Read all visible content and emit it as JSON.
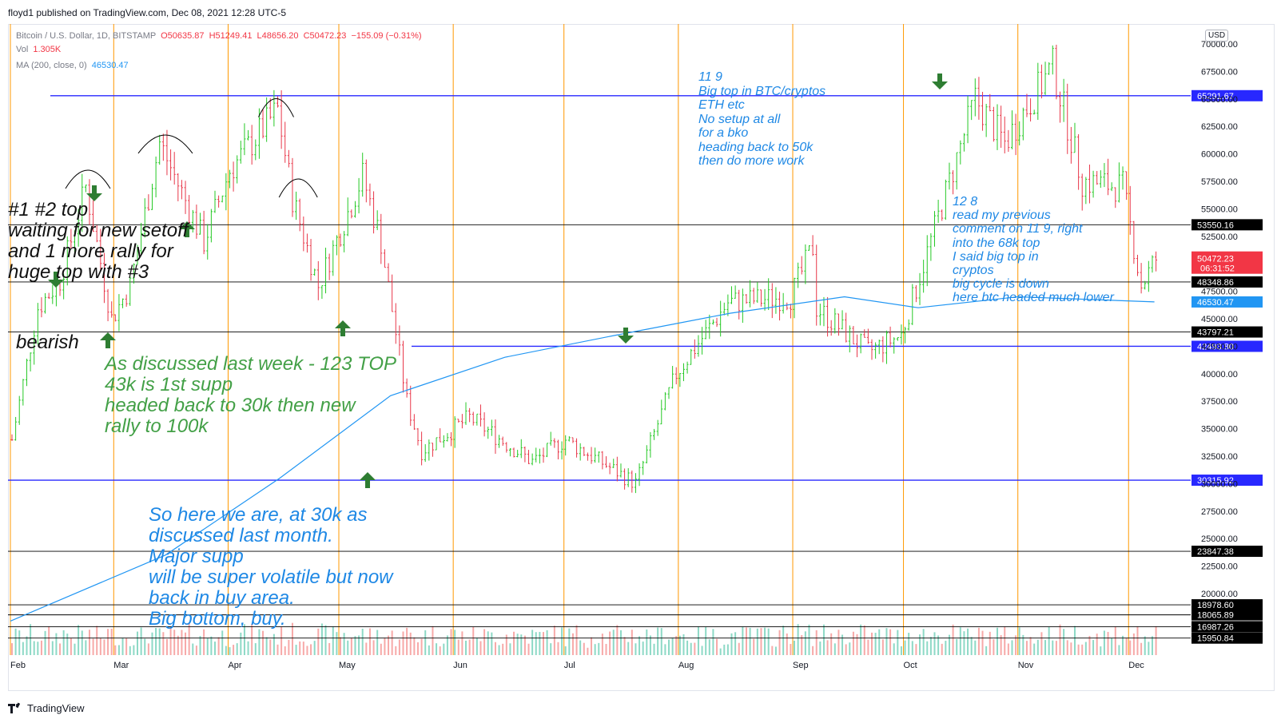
{
  "header": {
    "published": "floyd1 published on TradingView.com, Dec 08, 2021 12:28 UTC-5"
  },
  "legend": {
    "symbol": "Bitcoin / U.S. Dollar, 1D, BITSTAMP",
    "open": "O50635.87",
    "high": "H51249.41",
    "low": "L48656.20",
    "close": "C50472.23",
    "change": "−155.09 (−0.31%)",
    "vol_label": "Vol",
    "vol_value": "1.305K",
    "ma_label": "MA (200, close, 0)",
    "ma_value": "46530.47"
  },
  "currency": "USD",
  "footer": {
    "brand": "TradingView"
  },
  "colors": {
    "up": "#26c926",
    "down": "#e8384a",
    "vol_up": "#8dd9c6",
    "vol_down": "#f7a9a8",
    "ma": "#2196f3",
    "blue_level": "#2828ff",
    "black_level": "#000000",
    "vline": "#ff9800",
    "note_black": "#111111",
    "note_green": "#43a047",
    "note_blue": "#1e88e5",
    "arrow": "#2e7d32"
  },
  "chart_data": {
    "type": "candlestick",
    "ylim": [
      20000,
      72000
    ],
    "x_months": [
      "Feb",
      "Mar",
      "Apr",
      "May",
      "Jun",
      "Jul",
      "Aug",
      "Sep",
      "Oct",
      "Nov",
      "Dec"
    ],
    "y_ticks": [
      "70000.00",
      "67500.00",
      "65000.00",
      "62500.00",
      "60000.00",
      "57500.00",
      "55000.00",
      "52500.00",
      "50000.00",
      "47500.00",
      "45000.00",
      "42500.00",
      "40000.00",
      "37500.00",
      "35000.00",
      "32500.00",
      "30000.00",
      "27500.00",
      "25000.00",
      "22500.00",
      "20000.00"
    ],
    "y_tick_values": [
      70000,
      67500,
      65000,
      62500,
      60000,
      57500,
      55000,
      52500,
      50000,
      47500,
      45000,
      42500,
      40000,
      37500,
      35000,
      32500,
      30000,
      27500,
      25000,
      22500,
      20000
    ],
    "price_path": [
      [
        "2021-02-01",
        34000
      ],
      [
        "2021-02-08",
        46000
      ],
      [
        "2021-02-14",
        48500
      ],
      [
        "2021-02-21",
        57000
      ],
      [
        "2021-02-28",
        45000
      ],
      [
        "2021-03-05",
        48000
      ],
      [
        "2021-03-13",
        61000
      ],
      [
        "2021-03-25",
        52000
      ],
      [
        "2021-04-01",
        58500
      ],
      [
        "2021-04-14",
        64000
      ],
      [
        "2021-04-18",
        56000
      ],
      [
        "2021-04-25",
        48000
      ],
      [
        "2021-05-07",
        58000
      ],
      [
        "2021-05-12",
        52000
      ],
      [
        "2021-05-19",
        37500
      ],
      [
        "2021-05-23",
        33000
      ],
      [
        "2021-06-05",
        36000
      ],
      [
        "2021-06-22",
        32000
      ],
      [
        "2021-07-01",
        34000
      ],
      [
        "2021-07-20",
        30000
      ],
      [
        "2021-07-31",
        40000
      ],
      [
        "2021-08-14",
        46500
      ],
      [
        "2021-08-31",
        47000
      ],
      [
        "2021-09-06",
        51500
      ],
      [
        "2021-09-07",
        46000
      ],
      [
        "2021-09-21",
        42000
      ],
      [
        "2021-09-30",
        43500
      ],
      [
        "2021-10-20",
        65000
      ],
      [
        "2021-10-28",
        61000
      ],
      [
        "2021-11-10",
        68000
      ],
      [
        "2021-11-18",
        57500
      ],
      [
        "2021-11-29",
        57000
      ],
      [
        "2021-12-04",
        48000
      ],
      [
        "2021-12-08",
        50472
      ]
    ],
    "ma200_path": [
      [
        "2021-02-01",
        17500
      ],
      [
        "2021-03-15",
        23500
      ],
      [
        "2021-04-15",
        30500
      ],
      [
        "2021-05-15",
        38000
      ],
      [
        "2021-06-15",
        41500
      ],
      [
        "2021-07-15",
        43500
      ],
      [
        "2021-08-15",
        45500
      ],
      [
        "2021-09-15",
        47000
      ],
      [
        "2021-10-05",
        46000
      ],
      [
        "2021-11-01",
        47000
      ],
      [
        "2021-12-08",
        46530
      ]
    ],
    "last_price": {
      "value": 50472.23,
      "label": "50472.23",
      "countdown": "06:31:52"
    },
    "ma_last": {
      "value": 46530.47,
      "label": "46530.47"
    },
    "levels": [
      {
        "value": 65291.67,
        "label": "65291.67",
        "kind": "blue"
      },
      {
        "value": 53550.16,
        "label": "53550.16",
        "kind": "black"
      },
      {
        "value": 48348.86,
        "label": "48348.86",
        "kind": "black"
      },
      {
        "value": 43797.21,
        "label": "43797.21",
        "kind": "black"
      },
      {
        "value": 42493.8,
        "label": "42493.80",
        "kind": "blue"
      },
      {
        "value": 30315.92,
        "label": "30315.92",
        "kind": "blue"
      },
      {
        "value": 23847.38,
        "label": "23847.38",
        "kind": "black"
      },
      {
        "value": 18978.6,
        "label": "18978.60",
        "kind": "black"
      },
      {
        "value": 18065.89,
        "label": "18065.89",
        "kind": "black"
      },
      {
        "value": 16987.26,
        "label": "16987.26",
        "kind": "black"
      },
      {
        "value": 15950.84,
        "label": "15950.84",
        "kind": "black"
      }
    ],
    "annotations": {
      "note1": "#1 #2 top\nwaiting for new setoff\nand 1 more rally for\nhuge top with #3",
      "note2": "bearish",
      "note3": "As discussed last week - 123 TOP\n43k is 1st supp\nheaded back to 30k then new\nrally to 100k",
      "note4": "So here we are, at 30k as\ndiscussed last month.\nMajor supp\nwill be super volatile but now\nback in buy area.\nBig bottom, buy.",
      "note5": "11 9\nBig top in BTC/cryptos\nETH etc\nNo setup at all\nfor a bko\nheading back to 50k\nthen do more work",
      "note6": "12 8\nread my previous\ncomment on 11 9, right\ninto the 68k top\nI said big top in\ncryptos\nbig cycle is down\nhere btc headed much lower"
    }
  }
}
